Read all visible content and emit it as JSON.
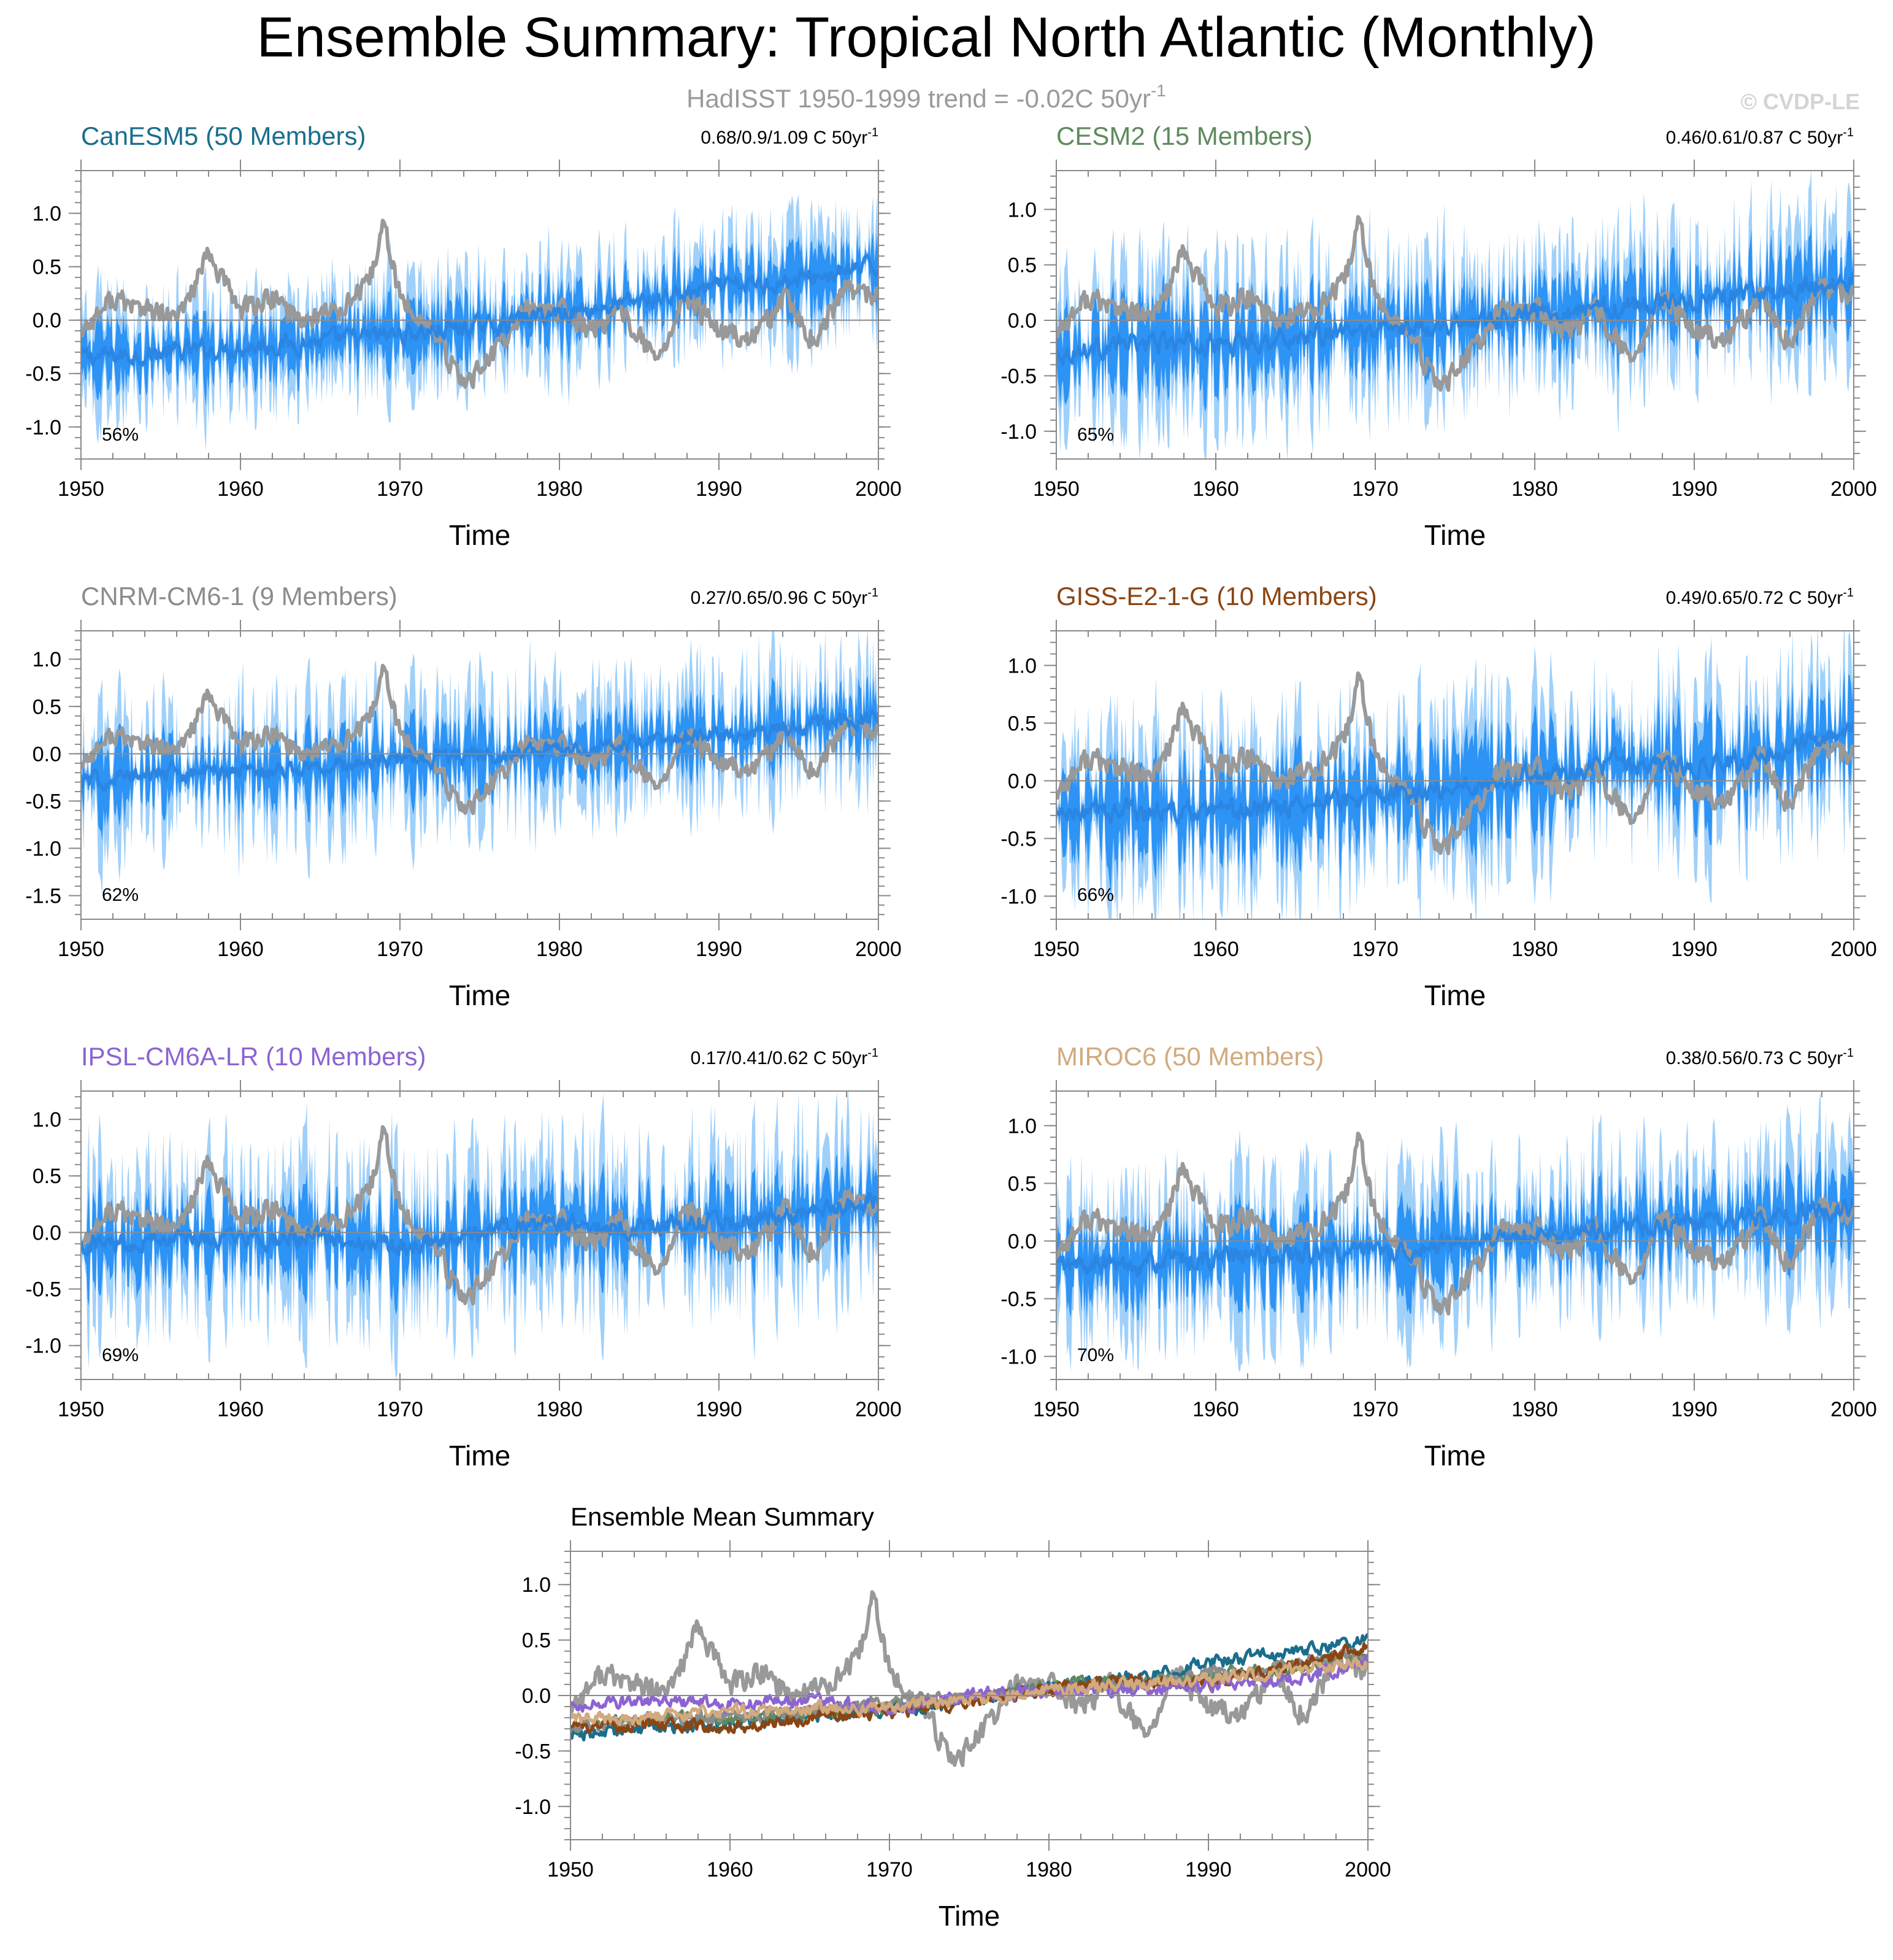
{
  "page": {
    "title": "Ensemble Summary: Tropical North Atlantic (Monthly)",
    "subtitle_prefix": "HadISST 1950-1999 trend = -0.02C 50yr",
    "subtitle_sup": "-1",
    "watermark": "© CVDP-LE"
  },
  "colors": {
    "obs": "#999999",
    "mean_line": "#2b86e3",
    "band_inner": "#2d93f5",
    "band_outer": "#9fd0fa",
    "axis": "#8a8a8a",
    "zero_line": "#8a8a8a"
  },
  "chart_data": [
    {
      "type": "line",
      "title": "CanESM5 (50 Members)",
      "title_color": "#1a6e8c",
      "trend_text": "0.68/0.9/1.09 C 50yr",
      "trend_sup": "-1",
      "percent_label": "56%",
      "xlabel": "Time",
      "ylabel": "",
      "xlim": [
        1950,
        2000
      ],
      "ylim": [
        -1.3,
        1.4
      ],
      "xticks": [
        1950,
        1960,
        1970,
        1980,
        1990,
        2000
      ],
      "yticks": [
        -1.0,
        -0.5,
        0.0,
        0.5,
        1.0
      ],
      "ytick_labels": [
        "-1.0",
        "-0.5",
        "0.0",
        "0.5",
        "1.0"
      ],
      "series": [
        {
          "name": "HadISST",
          "role": "obs",
          "x": [
            1950,
            1952,
            1954,
            1956,
            1958,
            1960,
            1962,
            1964,
            1966,
            1968,
            1969,
            1970,
            1972,
            1974,
            1976,
            1978,
            1980,
            1982,
            1984,
            1986,
            1988,
            1990,
            1992,
            1994,
            1996,
            1998,
            2000
          ],
          "values": [
            -0.1,
            0.2,
            0.1,
            0.0,
            0.6,
            0.1,
            0.2,
            0.0,
            0.1,
            0.3,
            0.9,
            0.2,
            -0.1,
            -0.6,
            -0.3,
            0.1,
            0.1,
            -0.1,
            0.1,
            -0.4,
            0.2,
            -0.1,
            -0.2,
            0.2,
            -0.2,
            0.3,
            0.2
          ]
        },
        {
          "name": "Ensemble mean",
          "role": "mean",
          "x": [
            1950,
            1955,
            1960,
            1965,
            1970,
            1975,
            1980,
            1985,
            1990,
            1995,
            2000
          ],
          "values": [
            -0.35,
            -0.31,
            -0.25,
            -0.2,
            -0.13,
            -0.06,
            0.07,
            0.17,
            0.3,
            0.38,
            0.5
          ]
        }
      ],
      "band_inner_halfwidth": 0.17,
      "band_outer_halfwidth": 0.33
    },
    {
      "type": "line",
      "title": "CESM2 (15 Members)",
      "title_color": "#5e8a5e",
      "trend_text": "0.46/0.61/0.87 C 50yr",
      "trend_sup": "-1",
      "percent_label": "65%",
      "xlabel": "Time",
      "ylabel": "",
      "xlim": [
        1950,
        2000
      ],
      "ylim": [
        -1.25,
        1.35
      ],
      "xticks": [
        1950,
        1960,
        1970,
        1980,
        1990,
        2000
      ],
      "yticks": [
        -1.0,
        -0.5,
        0.0,
        0.5,
        1.0
      ],
      "ytick_labels": [
        "-1.0",
        "-0.5",
        "0.0",
        "0.5",
        "1.0"
      ],
      "series": [
        {
          "name": "HadISST",
          "role": "obs",
          "x": [
            1950,
            1952,
            1954,
            1956,
            1958,
            1960,
            1962,
            1964,
            1966,
            1968,
            1969,
            1970,
            1972,
            1974,
            1976,
            1978,
            1980,
            1982,
            1984,
            1986,
            1988,
            1990,
            1992,
            1994,
            1996,
            1998,
            2000
          ],
          "values": [
            -0.1,
            0.2,
            0.1,
            0.0,
            0.6,
            0.1,
            0.2,
            0.0,
            0.1,
            0.3,
            0.9,
            0.2,
            -0.1,
            -0.6,
            -0.3,
            0.1,
            0.1,
            -0.1,
            0.1,
            -0.4,
            0.2,
            -0.1,
            -0.2,
            0.2,
            -0.2,
            0.3,
            0.2
          ]
        },
        {
          "name": "Ensemble mean",
          "role": "mean",
          "x": [
            1950,
            1955,
            1960,
            1965,
            1970,
            1975,
            1980,
            1985,
            1990,
            1995,
            2000
          ],
          "values": [
            -0.3,
            -0.2,
            -0.22,
            -0.15,
            -0.1,
            -0.02,
            0.08,
            0.12,
            0.18,
            0.25,
            0.35
          ]
        }
      ],
      "band_inner_halfwidth": 0.22,
      "band_outer_halfwidth": 0.42
    },
    {
      "type": "line",
      "title": "CNRM-CM6-1 (9 Members)",
      "title_color": "#8c8c8c",
      "trend_text": "0.27/0.65/0.96 C 50yr",
      "trend_sup": "-1",
      "percent_label": "62%",
      "xlabel": "Time",
      "ylabel": "",
      "xlim": [
        1950,
        2000
      ],
      "ylim": [
        -1.75,
        1.3
      ],
      "xticks": [
        1950,
        1960,
        1970,
        1980,
        1990,
        2000
      ],
      "yticks": [
        -1.5,
        -1.0,
        -0.5,
        0.0,
        0.5,
        1.0
      ],
      "ytick_labels": [
        "-1.5",
        "-1.0",
        "-0.5",
        "0.0",
        "0.5",
        "1.0"
      ],
      "series": [
        {
          "name": "HadISST",
          "role": "obs",
          "x": [
            1950,
            1952,
            1954,
            1956,
            1958,
            1960,
            1962,
            1964,
            1966,
            1968,
            1969,
            1970,
            1972,
            1974,
            1976,
            1978,
            1980,
            1982,
            1984,
            1986,
            1988,
            1990,
            1992,
            1994,
            1996,
            1998,
            2000
          ],
          "values": [
            -0.1,
            0.2,
            0.1,
            0.0,
            0.6,
            0.1,
            0.2,
            0.0,
            0.1,
            0.3,
            0.9,
            0.2,
            -0.1,
            -0.6,
            -0.3,
            0.1,
            0.1,
            -0.1,
            0.1,
            -0.4,
            0.2,
            -0.1,
            -0.2,
            0.2,
            -0.2,
            0.3,
            0.2
          ]
        },
        {
          "name": "Ensemble mean",
          "role": "mean",
          "x": [
            1950,
            1955,
            1960,
            1965,
            1970,
            1975,
            1980,
            1985,
            1990,
            1995,
            2000
          ],
          "values": [
            -0.3,
            -0.2,
            -0.18,
            -0.15,
            -0.05,
            -0.02,
            0.05,
            0.1,
            0.2,
            0.28,
            0.38
          ]
        }
      ],
      "band_inner_halfwidth": 0.22,
      "band_outer_halfwidth": 0.45
    },
    {
      "type": "line",
      "title": "GISS-E2-1-G (10 Members)",
      "title_color": "#8b4513",
      "trend_text": "0.49/0.65/0.72 C 50yr",
      "trend_sup": "-1",
      "percent_label": "66%",
      "xlabel": "Time",
      "ylabel": "",
      "xlim": [
        1950,
        2000
      ],
      "ylim": [
        -1.2,
        1.3
      ],
      "xticks": [
        1950,
        1960,
        1970,
        1980,
        1990,
        2000
      ],
      "yticks": [
        -1.0,
        -0.5,
        0.0,
        0.5,
        1.0
      ],
      "ytick_labels": [
        "-1.0",
        "-0.5",
        "0.0",
        "0.5",
        "1.0"
      ],
      "series": [
        {
          "name": "HadISST",
          "role": "obs",
          "x": [
            1950,
            1952,
            1954,
            1956,
            1958,
            1960,
            1962,
            1964,
            1966,
            1968,
            1969,
            1970,
            1972,
            1974,
            1976,
            1978,
            1980,
            1982,
            1984,
            1986,
            1988,
            1990,
            1992,
            1994,
            1996,
            1998,
            2000
          ],
          "values": [
            -0.1,
            0.2,
            0.1,
            0.0,
            0.6,
            0.1,
            0.2,
            0.0,
            0.1,
            0.3,
            0.9,
            0.2,
            -0.1,
            -0.6,
            -0.3,
            0.1,
            0.1,
            -0.1,
            0.1,
            -0.4,
            0.2,
            -0.1,
            -0.2,
            0.2,
            -0.2,
            0.3,
            0.2
          ]
        },
        {
          "name": "Ensemble mean",
          "role": "mean",
          "x": [
            1950,
            1955,
            1960,
            1965,
            1970,
            1975,
            1980,
            1985,
            1990,
            1995,
            2000
          ],
          "values": [
            -0.3,
            -0.25,
            -0.3,
            -0.2,
            -0.15,
            -0.05,
            0.05,
            0.15,
            0.1,
            0.25,
            0.45
          ]
        }
      ],
      "band_inner_halfwidth": 0.25,
      "band_outer_halfwidth": 0.45
    },
    {
      "type": "line",
      "title": "IPSL-CM6A-LR (10 Members)",
      "title_color": "#8c64d2",
      "trend_text": "0.17/0.41/0.62 C 50yr",
      "trend_sup": "-1",
      "percent_label": "69%",
      "xlabel": "Time",
      "ylabel": "",
      "xlim": [
        1950,
        2000
      ],
      "ylim": [
        -1.3,
        1.25
      ],
      "xticks": [
        1950,
        1960,
        1970,
        1980,
        1990,
        2000
      ],
      "yticks": [
        -1.0,
        -0.5,
        0.0,
        0.5,
        1.0
      ],
      "ytick_labels": [
        "-1.0",
        "-0.5",
        "0.0",
        "0.5",
        "1.0"
      ],
      "series": [
        {
          "name": "HadISST",
          "role": "obs",
          "x": [
            1950,
            1952,
            1954,
            1956,
            1958,
            1960,
            1962,
            1964,
            1966,
            1968,
            1969,
            1970,
            1972,
            1974,
            1976,
            1978,
            1980,
            1982,
            1984,
            1986,
            1988,
            1990,
            1992,
            1994,
            1996,
            1998,
            2000
          ],
          "values": [
            -0.1,
            0.2,
            0.1,
            0.0,
            0.6,
            0.1,
            0.2,
            0.0,
            0.1,
            0.3,
            0.9,
            0.2,
            -0.1,
            -0.6,
            -0.3,
            0.1,
            0.1,
            -0.1,
            0.1,
            -0.4,
            0.2,
            -0.1,
            -0.2,
            0.2,
            -0.2,
            0.3,
            0.2
          ]
        },
        {
          "name": "Ensemble mean",
          "role": "mean",
          "x": [
            1950,
            1955,
            1960,
            1965,
            1970,
            1975,
            1980,
            1985,
            1990,
            1995,
            2000
          ],
          "values": [
            -0.1,
            -0.05,
            -0.08,
            -0.05,
            -0.12,
            0.0,
            0.05,
            0.05,
            0.1,
            0.15,
            0.3
          ]
        }
      ],
      "band_inner_halfwidth": 0.22,
      "band_outer_halfwidth": 0.45
    },
    {
      "type": "line",
      "title": "MIROC6 (50 Members)",
      "title_color": "#d2aa7d",
      "trend_text": "0.38/0.56/0.73 C 50yr",
      "trend_sup": "-1",
      "percent_label": "70%",
      "xlabel": "Time",
      "ylabel": "",
      "xlim": [
        1950,
        2000
      ],
      "ylim": [
        -1.2,
        1.3
      ],
      "xticks": [
        1950,
        1960,
        1970,
        1980,
        1990,
        2000
      ],
      "yticks": [
        -1.0,
        -0.5,
        0.0,
        0.5,
        1.0
      ],
      "ytick_labels": [
        "-1.0",
        "-0.5",
        "0.0",
        "0.5",
        "1.0"
      ],
      "series": [
        {
          "name": "HadISST",
          "role": "obs",
          "x": [
            1950,
            1952,
            1954,
            1956,
            1958,
            1960,
            1962,
            1964,
            1966,
            1968,
            1969,
            1970,
            1972,
            1974,
            1976,
            1978,
            1980,
            1982,
            1984,
            1986,
            1988,
            1990,
            1992,
            1994,
            1996,
            1998,
            2000
          ],
          "values": [
            -0.1,
            0.2,
            0.1,
            0.0,
            0.6,
            0.1,
            0.2,
            0.0,
            0.1,
            0.3,
            0.9,
            0.2,
            -0.1,
            -0.6,
            -0.3,
            0.1,
            0.1,
            -0.1,
            0.1,
            -0.4,
            0.2,
            -0.1,
            -0.2,
            0.2,
            -0.2,
            0.3,
            0.2
          ]
        },
        {
          "name": "Ensemble mean",
          "role": "mean",
          "x": [
            1950,
            1955,
            1960,
            1965,
            1970,
            1975,
            1980,
            1985,
            1990,
            1995,
            2000
          ],
          "values": [
            -0.22,
            -0.2,
            -0.15,
            -0.12,
            -0.1,
            -0.03,
            0.05,
            0.1,
            0.15,
            0.22,
            0.3
          ]
        }
      ],
      "band_inner_halfwidth": 0.2,
      "band_outer_halfwidth": 0.4
    },
    {
      "type": "line",
      "title": "Ensemble Mean Summary",
      "title_color": "#000000",
      "xlabel": "Time",
      "ylabel": "",
      "xlim": [
        1950,
        2000
      ],
      "ylim": [
        -1.3,
        1.3
      ],
      "xticks": [
        1950,
        1960,
        1970,
        1980,
        1990,
        2000
      ],
      "yticks": [
        -1.0,
        -0.5,
        0.0,
        0.5,
        1.0
      ],
      "ytick_labels": [
        "-1.0",
        "-0.5",
        "0.0",
        "0.5",
        "1.0"
      ],
      "series": [
        {
          "name": "HadISST",
          "color": "#999999",
          "x": [
            1950,
            1952,
            1954,
            1956,
            1958,
            1960,
            1962,
            1964,
            1966,
            1968,
            1969,
            1970,
            1972,
            1974,
            1976,
            1978,
            1980,
            1982,
            1984,
            1986,
            1988,
            1990,
            1992,
            1994,
            1996,
            1998,
            2000
          ],
          "values": [
            -0.1,
            0.2,
            0.1,
            0.0,
            0.6,
            0.1,
            0.2,
            0.0,
            0.1,
            0.3,
            0.9,
            0.2,
            -0.1,
            -0.6,
            -0.3,
            0.1,
            0.1,
            -0.1,
            0.1,
            -0.4,
            0.2,
            -0.1,
            -0.2,
            0.2,
            -0.2,
            0.3,
            0.2
          ]
        },
        {
          "name": "CanESM5",
          "color": "#1a6e8c",
          "x": [
            1950,
            1955,
            1960,
            1965,
            1970,
            1975,
            1980,
            1985,
            1990,
            1995,
            2000
          ],
          "values": [
            -0.35,
            -0.31,
            -0.25,
            -0.2,
            -0.13,
            -0.06,
            0.07,
            0.17,
            0.3,
            0.38,
            0.5
          ]
        },
        {
          "name": "CESM2",
          "color": "#5e8a5e",
          "x": [
            1950,
            1955,
            1960,
            1965,
            1970,
            1975,
            1980,
            1985,
            1990,
            1995,
            2000
          ],
          "values": [
            -0.3,
            -0.2,
            -0.22,
            -0.15,
            -0.1,
            -0.02,
            0.08,
            0.12,
            0.18,
            0.25,
            0.35
          ]
        },
        {
          "name": "CNRM-CM6-1",
          "color": "#8c8c8c",
          "x": [
            1950,
            1955,
            1960,
            1965,
            1970,
            1975,
            1980,
            1985,
            1990,
            1995,
            2000
          ],
          "values": [
            -0.3,
            -0.2,
            -0.18,
            -0.15,
            -0.05,
            -0.02,
            0.05,
            0.1,
            0.2,
            0.28,
            0.38
          ]
        },
        {
          "name": "GISS-E2-1-G",
          "color": "#8b4513",
          "x": [
            1950,
            1955,
            1960,
            1965,
            1970,
            1975,
            1980,
            1985,
            1990,
            1995,
            2000
          ],
          "values": [
            -0.3,
            -0.25,
            -0.3,
            -0.2,
            -0.15,
            -0.05,
            0.05,
            0.15,
            0.1,
            0.25,
            0.45
          ]
        },
        {
          "name": "IPSL-CM6A-LR",
          "color": "#8c64d2",
          "x": [
            1950,
            1955,
            1960,
            1965,
            1970,
            1975,
            1980,
            1985,
            1990,
            1995,
            2000
          ],
          "values": [
            -0.1,
            -0.05,
            -0.08,
            -0.05,
            -0.12,
            0.0,
            0.05,
            0.05,
            0.1,
            0.15,
            0.3
          ]
        },
        {
          "name": "MIROC6",
          "color": "#d2aa7d",
          "x": [
            1950,
            1955,
            1960,
            1965,
            1970,
            1975,
            1980,
            1985,
            1990,
            1995,
            2000
          ],
          "values": [
            -0.22,
            -0.2,
            -0.15,
            -0.12,
            -0.1,
            -0.03,
            0.05,
            0.1,
            0.15,
            0.22,
            0.3
          ]
        }
      ]
    }
  ]
}
